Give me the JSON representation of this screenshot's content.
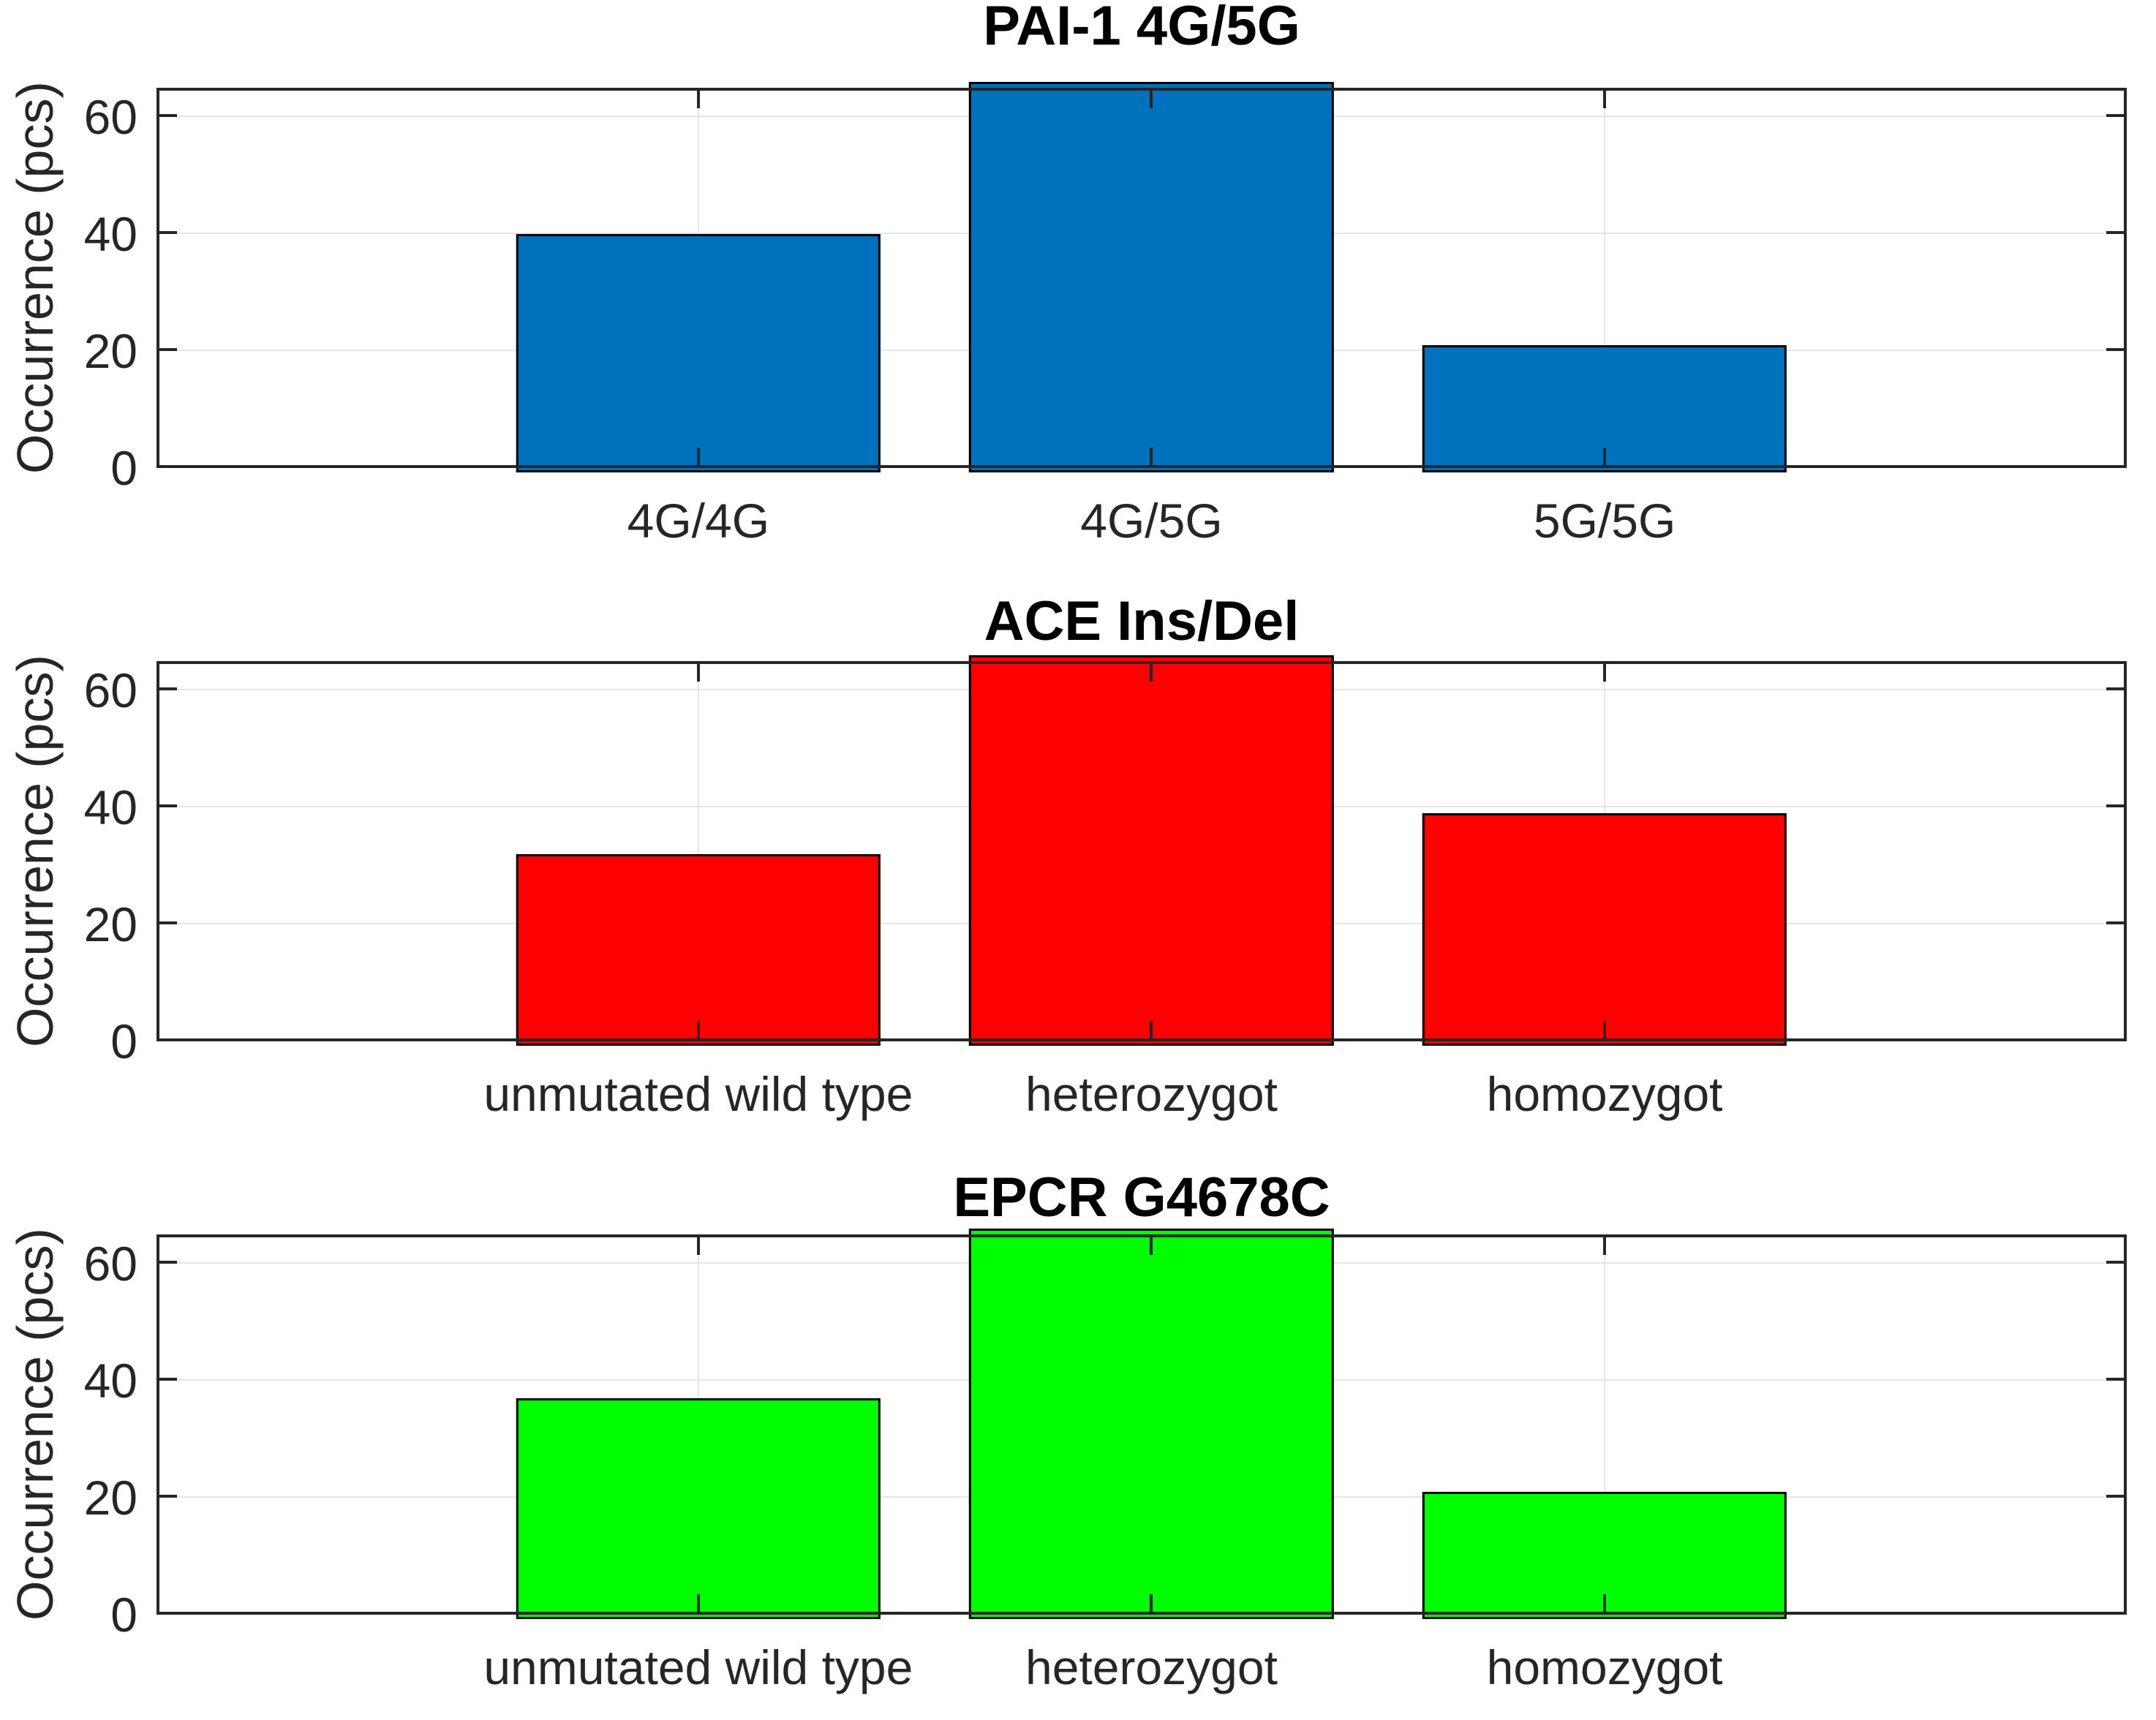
{
  "figure": {
    "background": "#ffffff",
    "axis_color": "#262626",
    "grid_color": "#e6e6e6",
    "bar_edge_color": "#000000",
    "tick_label_color": "#262626"
  },
  "chart_data": [
    {
      "type": "bar",
      "title": "PAI-1 4G/5G",
      "categories": [
        "4G/4G",
        "4G/5G",
        "5G/5G"
      ],
      "values": [
        40,
        65,
        21
      ],
      "bar_color": "#0072BD",
      "ylabel": "Occurrence (pcs)",
      "yticks": [
        0,
        20,
        40,
        60
      ],
      "ylim": [
        0,
        65
      ],
      "grid": true,
      "legend": null
    },
    {
      "type": "bar",
      "title": "ACE Ins/Del",
      "categories": [
        "unmutated wild type",
        "heterozygot",
        "homozygot"
      ],
      "values": [
        32,
        65,
        39
      ],
      "bar_color": "#FF0000",
      "ylabel": "Occurrence (pcs)",
      "yticks": [
        0,
        20,
        40,
        60
      ],
      "ylim": [
        0,
        65
      ],
      "grid": true,
      "legend": null
    },
    {
      "type": "bar",
      "title": "EPCR G4678C",
      "categories": [
        "unmutated wild type",
        "heterozygot",
        "homozygot"
      ],
      "values": [
        37,
        65,
        21
      ],
      "bar_color": "#00FF00",
      "ylabel": "Occurrence (pcs)",
      "yticks": [
        0,
        20,
        40,
        60
      ],
      "ylim": [
        0,
        65
      ],
      "grid": true,
      "legend": null
    }
  ]
}
